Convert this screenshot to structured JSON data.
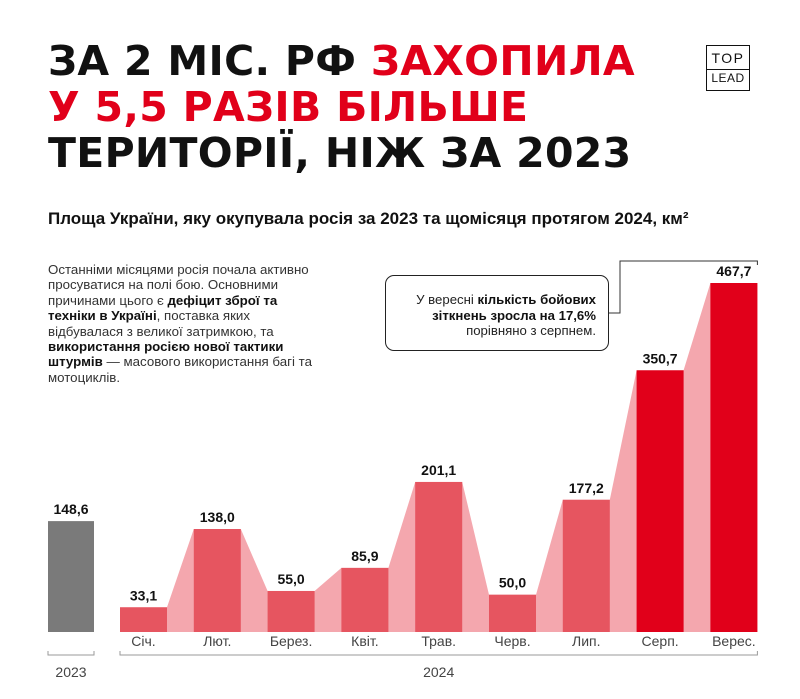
{
  "headline": {
    "line1_black": "ЗА 2 МІС. РФ ",
    "line1_red": "ЗАХОПИЛА",
    "line2_red": "У 5,5 РАЗІВ БІЛЬШЕ",
    "line3_black": "ТЕРИТОРІЇ, НІЖ ЗА 2023"
  },
  "logo": {
    "top": "TOP",
    "bottom": "LEAD"
  },
  "subtitle": "Площа України, яку окупувала росія за 2023 та щомісяця протягом 2024, км²",
  "intro": {
    "t1": "Останніми місяцями росія почала активно просуватися на полі бою. Основними причинами цього є ",
    "b1": "дефіцит зброї та техніки в Україні",
    "t2": ", поставка яких відбувалася з великої затримкою, та ",
    "b2": "використання росією нової тактики штурмів",
    "t3": " — масового використання багі та мотоциклів."
  },
  "callout": {
    "t1": "У вересні ",
    "b1": "кількість бойових зіткнень зросла на 17,6%",
    "t2": " порівняно з серпнем."
  },
  "colors": {
    "accent": "#e1001a",
    "bar_2023": "#7a7a7a",
    "bar_2024": "#e65560",
    "bar_highlight": "#e1001a",
    "area": "#f4a7ae"
  },
  "chart_data": {
    "type": "bar",
    "units": "км²",
    "groups": [
      {
        "label": "2023",
        "categories": [
          ""
        ],
        "values": [
          148.6
        ],
        "labels": [
          "148,6"
        ]
      },
      {
        "label": "2024",
        "categories": [
          "Січ.",
          "Лют.",
          "Берез.",
          "Квіт.",
          "Трав.",
          "Черв.",
          "Лип.",
          "Серп.",
          "Верес."
        ],
        "values": [
          33.1,
          138.0,
          55.0,
          85.9,
          201.1,
          50.0,
          177.2,
          350.7,
          467.7
        ],
        "labels": [
          "33,1",
          "138,0",
          "55,0",
          "85,9",
          "201,1",
          "50,0",
          "177,2",
          "350,7",
          "467,7"
        ],
        "highlighted": [
          "Серп.",
          "Верес."
        ]
      }
    ],
    "annotation_target": "Верес.",
    "ylim": [
      0,
      467.7
    ],
    "grid": false,
    "legend": "none"
  }
}
